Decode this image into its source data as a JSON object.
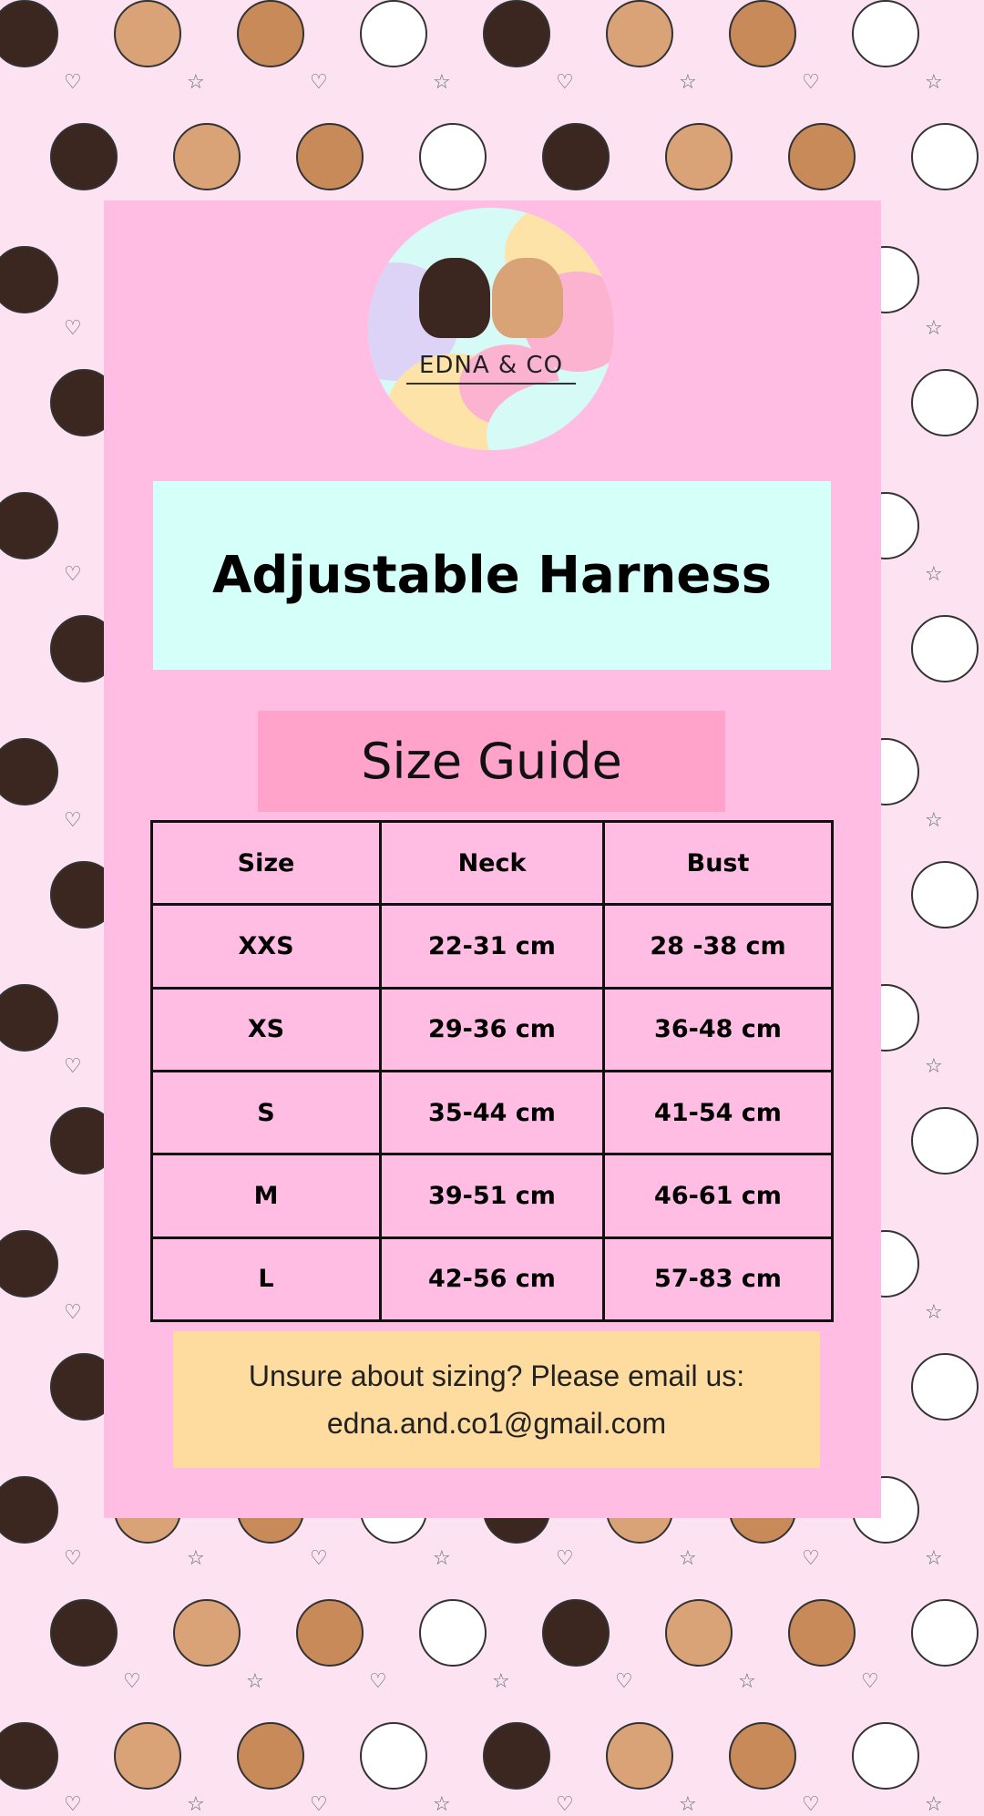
{
  "logo": {
    "text": "EDNA & CO"
  },
  "title": "Adjustable Harness",
  "subtitle": "Size Guide",
  "table": {
    "headers": [
      "Size",
      "Neck",
      "Bust"
    ],
    "rows": [
      [
        "XXS",
        "22-31 cm",
        "28 -38 cm"
      ],
      [
        "XS",
        "29-36 cm",
        "36-48 cm"
      ],
      [
        "S",
        "35-44 cm",
        "41-54 cm"
      ],
      [
        "M",
        "39-51 cm",
        "46-61 cm"
      ],
      [
        "L",
        "42-56 cm",
        "57-83 cm"
      ]
    ]
  },
  "contact": {
    "line1": "Unsure about sizing? Please email us:",
    "email": "edna.and.co1@gmail.com"
  },
  "colors": {
    "background": "#fde3f1",
    "panel": "#ffbde4",
    "title_box": "#d5fff9",
    "subtitle_box": "#ffa3cb",
    "contact_box": "#fedc9f"
  },
  "decor_icons": [
    "cat-icon",
    "dog-icon",
    "chicken-icon",
    "heart-icon",
    "star-icon"
  ]
}
